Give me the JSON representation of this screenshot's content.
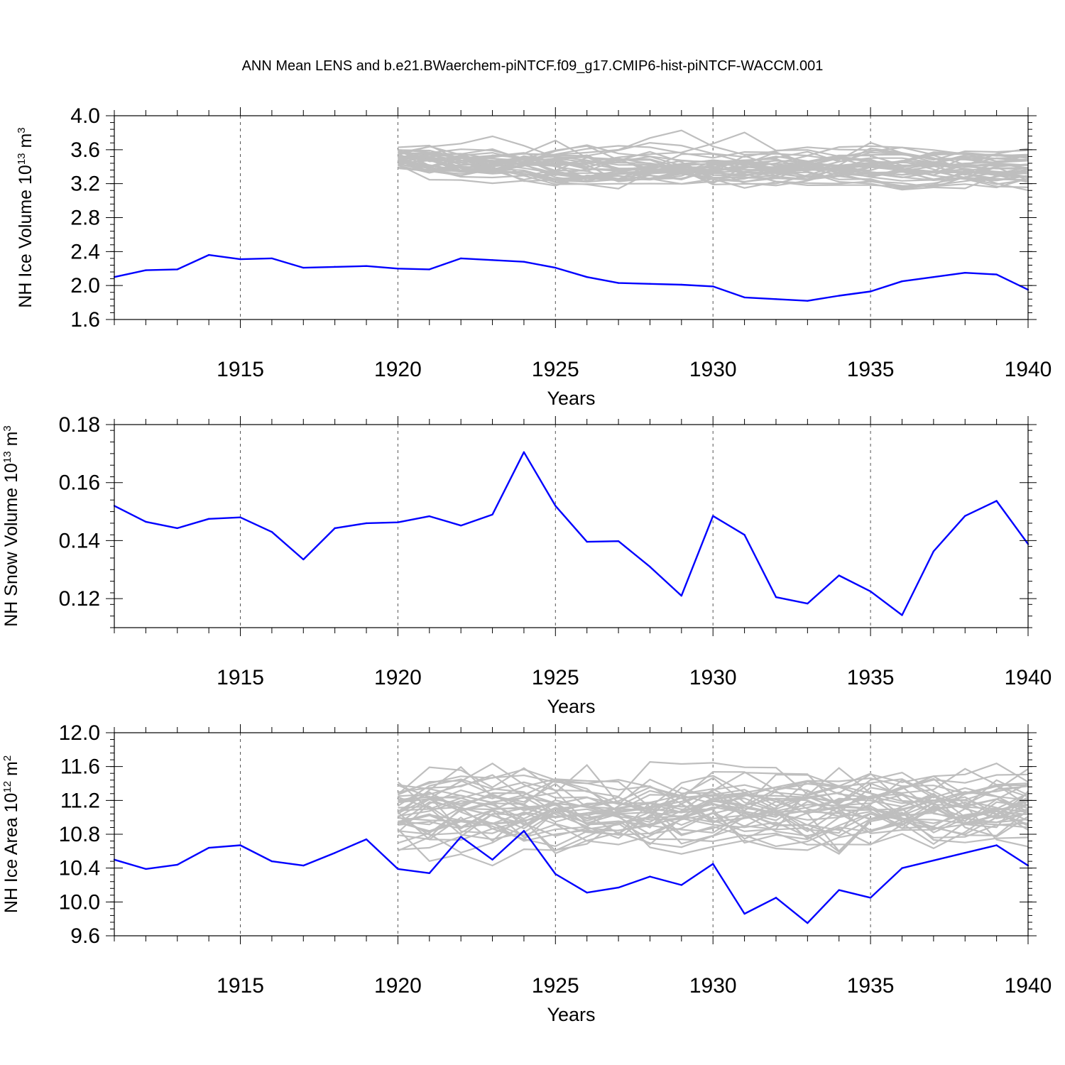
{
  "title": "ANN Mean LENS and b.e21.BWaerchem-piNTCF.f09_g17.CMIP6-hist-piNTCF-WACCM.001",
  "colors": {
    "run": "#0000ff",
    "ensemble": "#bebebe",
    "axis": "#000000",
    "grid": "#555555"
  },
  "chart_data": [
    {
      "type": "line",
      "title": "",
      "xlabel": "Years",
      "ylabel": {
        "base": "NH Ice Volume 10",
        "exp": "13",
        "unit": " m",
        "unit_exp": "3"
      },
      "xlim": [
        1911,
        1940
      ],
      "ylim": [
        1.6,
        4.0
      ],
      "xticks": [
        1915,
        1920,
        1925,
        1930,
        1935,
        1940
      ],
      "xtick_labels": [
        "1915",
        "1920",
        "1925",
        "1930",
        "1935",
        "1940"
      ],
      "yticks": [
        1.6,
        2.0,
        2.4,
        2.8,
        3.2,
        3.6,
        4.0
      ],
      "ytick_labels": [
        "1.6",
        "2.0",
        "2.4",
        "2.8",
        "3.2",
        "3.6",
        "4.0"
      ],
      "yminor_step": 0.08,
      "xgrid": [
        1915,
        1920,
        1925,
        1930,
        1935
      ],
      "ensemble": {
        "x_start": 1920,
        "x_end": 1940,
        "members": 40,
        "start_mean": 3.5,
        "start_spread": 0.07,
        "mean": 3.38,
        "spread": 0.12,
        "min": 2.68,
        "max": 4.0,
        "seed": 7
      },
      "series": [
        {
          "name": "b.e21.BWaerchem-piNTCF.f09_g17.CMIP6-hist-piNTCF-WACCM.001",
          "x": [
            1911,
            1912,
            1913,
            1914,
            1915,
            1916,
            1917,
            1918,
            1919,
            1920,
            1921,
            1922,
            1923,
            1924,
            1925,
            1926,
            1927,
            1928,
            1929,
            1930,
            1931,
            1932,
            1933,
            1934,
            1935,
            1936,
            1937,
            1938,
            1939,
            1940
          ],
          "values": [
            2.1,
            2.18,
            2.19,
            2.36,
            2.31,
            2.32,
            2.21,
            2.22,
            2.23,
            2.2,
            2.19,
            2.32,
            2.3,
            2.28,
            2.21,
            2.1,
            2.03,
            2.02,
            2.01,
            1.99,
            1.86,
            1.84,
            1.82,
            1.88,
            1.93,
            2.05,
            2.1,
            2.15,
            2.13,
            1.95
          ]
        }
      ]
    },
    {
      "type": "line",
      "title": "",
      "xlabel": "Years",
      "ylabel": {
        "base": "NH Snow Volume 10",
        "exp": "13",
        "unit": " m",
        "unit_exp": "3"
      },
      "xlim": [
        1911,
        1940
      ],
      "ylim": [
        0.11,
        0.18
      ],
      "xticks": [
        1915,
        1920,
        1925,
        1930,
        1935,
        1940
      ],
      "xtick_labels": [
        "1915",
        "1920",
        "1925",
        "1930",
        "1935",
        "1940"
      ],
      "yticks": [
        0.12,
        0.14,
        0.16,
        0.18
      ],
      "ytick_labels": [
        "0.12",
        "0.14",
        "0.16",
        "0.18"
      ],
      "yminor_step": 0.004,
      "xgrid": [
        1915,
        1920,
        1925,
        1930,
        1935
      ],
      "series": [
        {
          "name": "b.e21.BWaerchem-piNTCF.f09_g17.CMIP6-hist-piNTCF-WACCM.001",
          "x": [
            1911,
            1912,
            1913,
            1914,
            1915,
            1916,
            1917,
            1918,
            1919,
            1920,
            1921,
            1922,
            1923,
            1924,
            1925,
            1926,
            1927,
            1928,
            1929,
            1930,
            1931,
            1932,
            1933,
            1934,
            1935,
            1936,
            1937,
            1938,
            1939,
            1940
          ],
          "values": [
            0.152,
            0.1465,
            0.1443,
            0.1475,
            0.148,
            0.143,
            0.1335,
            0.1443,
            0.146,
            0.1463,
            0.1484,
            0.1452,
            0.149,
            0.1705,
            0.152,
            0.1396,
            0.1398,
            0.131,
            0.121,
            0.1485,
            0.142,
            0.1205,
            0.1183,
            0.128,
            0.1225,
            0.1143,
            0.1363,
            0.1485,
            0.1537,
            0.1388
          ]
        }
      ]
    },
    {
      "type": "line",
      "title": "",
      "xlabel": "Years",
      "ylabel": {
        "base": "NH Ice Area 10",
        "exp": "12",
        "unit": " m",
        "unit_exp": "2"
      },
      "xlim": [
        1911,
        1940
      ],
      "ylim": [
        9.6,
        12.0
      ],
      "xticks": [
        1915,
        1920,
        1925,
        1930,
        1935,
        1940
      ],
      "xtick_labels": [
        "1915",
        "1920",
        "1925",
        "1930",
        "1935",
        "1940"
      ],
      "yticks": [
        9.6,
        10.0,
        10.4,
        10.8,
        11.2,
        11.6,
        12.0
      ],
      "ytick_labels": [
        "9.6",
        "10.0",
        "10.4",
        "10.8",
        "11.2",
        "11.6",
        "12.0"
      ],
      "yminor_step": 0.08,
      "xgrid": [
        1915,
        1920,
        1925,
        1930,
        1935
      ],
      "ensemble": {
        "x_start": 1920,
        "x_end": 1940,
        "members": 40,
        "start_mean": 11.1,
        "start_spread": 0.18,
        "mean": 11.05,
        "spread": 0.26,
        "min": 10.43,
        "max": 11.88,
        "seed": 23
      },
      "series": [
        {
          "name": "b.e21.BWaerchem-piNTCF.f09_g17.CMIP6-hist-piNTCF-WACCM.001",
          "x": [
            1911,
            1912,
            1913,
            1914,
            1915,
            1916,
            1917,
            1918,
            1919,
            1920,
            1921,
            1922,
            1923,
            1924,
            1925,
            1926,
            1927,
            1928,
            1929,
            1930,
            1931,
            1932,
            1933,
            1934,
            1935,
            1936,
            1937,
            1938,
            1939,
            1940
          ],
          "values": [
            10.5,
            10.39,
            10.44,
            10.64,
            10.67,
            10.48,
            10.43,
            10.58,
            10.74,
            10.39,
            10.34,
            10.77,
            10.5,
            10.84,
            10.33,
            10.11,
            10.17,
            10.3,
            10.2,
            10.45,
            9.86,
            10.05,
            9.75,
            10.14,
            10.05,
            10.4,
            10.49,
            10.58,
            10.67,
            10.43
          ]
        }
      ]
    }
  ]
}
